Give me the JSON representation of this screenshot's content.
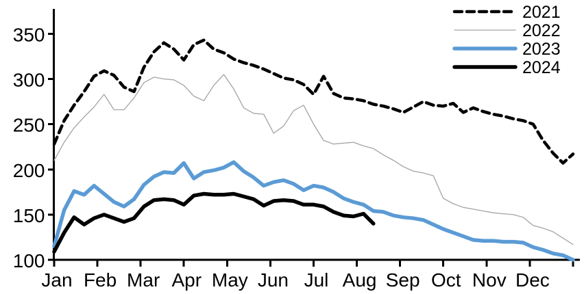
{
  "chart_data": {
    "type": "line",
    "title": "",
    "xlabel": "",
    "ylabel": "",
    "x_unit": "weeks (53 points spanning Jan–Dec)",
    "x_axis": {
      "tick_labels": [
        "Jan",
        "Feb",
        "Mar",
        "Apr",
        "May",
        "Jun",
        "Jul",
        "Aug",
        "Sep",
        "Oct",
        "Nov",
        "Dec"
      ],
      "extra_unlabeled_end_tick": true
    },
    "y_axis": {
      "ticks": [
        100,
        150,
        200,
        250,
        300,
        350
      ],
      "ylim": [
        100,
        360
      ],
      "grid": false
    },
    "legend": {
      "position": "top-right",
      "entries": [
        "2021",
        "2022",
        "2023",
        "2024"
      ]
    },
    "colors": {
      "black": "#000000",
      "gray": "#a3a3a3",
      "blue": "#5b9bd5"
    },
    "series": [
      {
        "name": "2021",
        "style": "dashed",
        "color": "#000000",
        "width": 4.5,
        "values": [
          228,
          254,
          271,
          286,
          303,
          309,
          304,
          291,
          286,
          313,
          330,
          340,
          333,
          321,
          338,
          343,
          333,
          329,
          322,
          318,
          315,
          311,
          306,
          301,
          299,
          294,
          283,
          303,
          284,
          279,
          278,
          276,
          272,
          270,
          267,
          263,
          269,
          275,
          271,
          270,
          273,
          263,
          268,
          264,
          261,
          259,
          256,
          254,
          250,
          232,
          218,
          207,
          217
        ]
      },
      {
        "name": "2022",
        "style": "solid",
        "color": "#a3a3a3",
        "width": 1.3,
        "values": [
          210,
          230,
          246,
          258,
          269,
          283,
          266,
          266,
          279,
          296,
          302,
          300,
          299,
          293,
          281,
          276,
          293,
          305,
          289,
          268,
          262,
          261,
          240,
          248,
          265,
          271,
          250,
          232,
          228,
          229,
          230,
          226,
          223,
          216,
          210,
          203,
          198,
          196,
          193,
          168,
          162,
          158,
          156,
          154,
          152,
          151,
          150,
          147,
          138,
          135,
          131,
          124,
          117
        ]
      },
      {
        "name": "2023",
        "style": "solid",
        "color": "#5b9bd5",
        "width": 5.5,
        "values": [
          115,
          155,
          176,
          172,
          182,
          173,
          164,
          159,
          167,
          183,
          192,
          197,
          196,
          207,
          190,
          197,
          199,
          202,
          208,
          198,
          191,
          182,
          186,
          188,
          184,
          177,
          182,
          180,
          175,
          168,
          164,
          161,
          154,
          153,
          149,
          147,
          146,
          144,
          139,
          134,
          130,
          126,
          122,
          121,
          121,
          120,
          120,
          119,
          114,
          111,
          107,
          105,
          100
        ]
      },
      {
        "name": "2024",
        "style": "solid",
        "color": "#000000",
        "width": 5.5,
        "values": [
          109,
          130,
          147,
          139,
          146,
          150,
          146,
          142,
          146,
          159,
          166,
          167,
          166,
          161,
          171,
          173,
          172,
          172,
          173,
          170,
          167,
          160,
          165,
          166,
          165,
          161,
          161,
          159,
          153,
          149,
          148,
          151,
          140
        ]
      }
    ]
  }
}
